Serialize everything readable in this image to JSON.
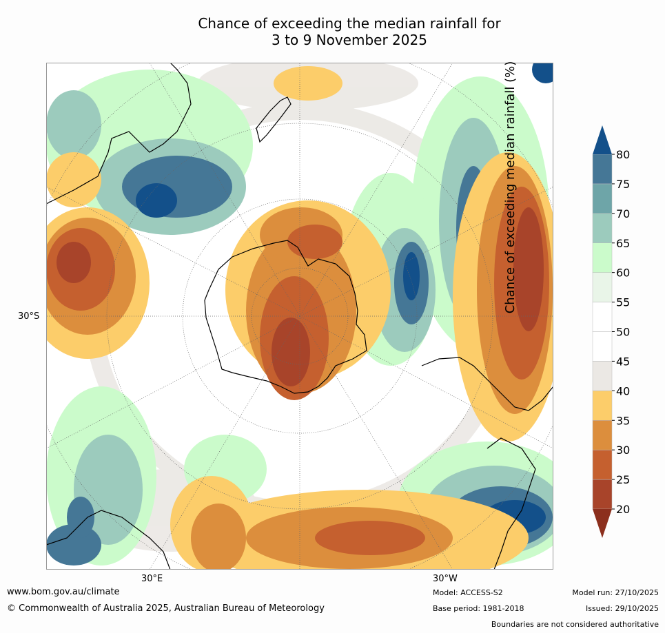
{
  "title": {
    "line1": "Chance of exceeding the median rainfall for",
    "line2": "3 to 9 November 2025"
  },
  "map": {
    "lat_label": "30°S",
    "lon_label_left": "30°E",
    "lon_label_right": "30°W"
  },
  "colorbar": {
    "label": "Chance of exceeding median rainfall (%)",
    "ticks": [
      "20",
      "25",
      "30",
      "35",
      "40",
      "45",
      "50",
      "55",
      "60",
      "65",
      "70",
      "75",
      "80"
    ],
    "colors": [
      "#a8442a",
      "#c5602f",
      "#dc8e3d",
      "#fccd6a",
      "#ebe8e4",
      "#ffffff",
      "#ffffff",
      "#e9f5e8",
      "#cbfbcb",
      "#9ccbbd",
      "#6ea5a8",
      "#457796"
    ],
    "low_arrow_color": "#8c2f1d",
    "high_arrow_color": "#13508a"
  },
  "footer": {
    "website": "www.bom.gov.au/climate",
    "copyright": "© Commonwealth of Australia 2025, Australian Bureau of Meteorology",
    "model": "Model: ACCESS-S2",
    "base_period": "Base period: 1981-2018",
    "model_run": "Model run: 27/10/2025",
    "issued": "Issued: 29/10/2025",
    "disclaimer": "Boundaries are not considered authoritative"
  }
}
